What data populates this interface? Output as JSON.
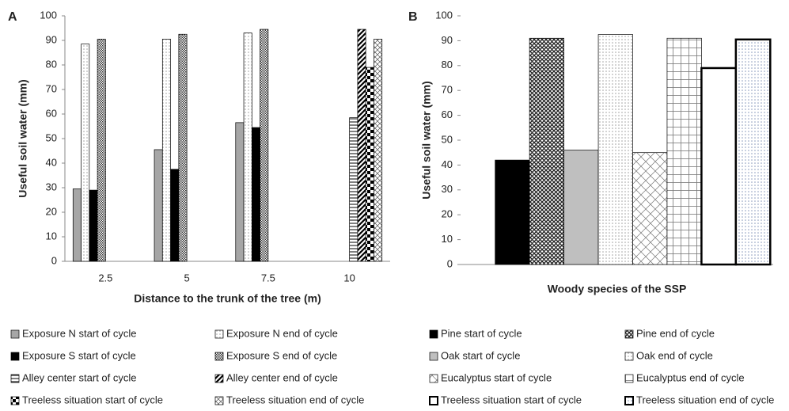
{
  "chart_data": [
    {
      "type": "bar",
      "label": "A",
      "xlabel": "Distance to the trunk of the tree (m)",
      "ylabel": "Useful  soil  water (mm)",
      "categories": [
        "2.5",
        "5",
        "7.5",
        "10"
      ],
      "ylim": [
        0,
        100
      ],
      "yticks": [
        0,
        10,
        20,
        30,
        40,
        50,
        60,
        70,
        80,
        90,
        100
      ],
      "series": [
        {
          "name": "Exposure N start of cycle",
          "color": "#a6a6a6",
          "pattern": "solid",
          "values": [
            29.5,
            45.5,
            56.5,
            null
          ]
        },
        {
          "name": "Exposure N end of cycle",
          "color": "#a0a0a0",
          "pattern": "dots",
          "values": [
            88.5,
            90.5,
            93,
            null
          ]
        },
        {
          "name": "Exposure S start of cycle",
          "color": "#000000",
          "pattern": "solid",
          "values": [
            29,
            37.5,
            54.5,
            null
          ]
        },
        {
          "name": "Exposure S end of cycle",
          "color": "#333333",
          "pattern": "checker",
          "values": [
            90.5,
            92.5,
            94.5,
            null
          ]
        },
        {
          "name": "Alley center start of cycle",
          "color": "#000000",
          "pattern": "hlines",
          "values": [
            null,
            null,
            null,
            58.5
          ]
        },
        {
          "name": "Alley center end of cycle",
          "color": "#000000",
          "pattern": "diag",
          "values": [
            null,
            null,
            null,
            94.5
          ]
        },
        {
          "name": "Treeless situation start of cycle",
          "color": "#000000",
          "pattern": "bigchecker",
          "values": [
            null,
            null,
            null,
            79
          ]
        },
        {
          "name": "Treeless situation end of cycle",
          "color": "#555555",
          "pattern": "diagcross",
          "values": [
            null,
            null,
            null,
            90.5
          ]
        }
      ]
    },
    {
      "type": "bar",
      "label": "B",
      "xlabel": "Woody species of the SSP",
      "ylabel": "Useful  soil  water (mm)",
      "categories": [
        null
      ],
      "ylim": [
        0,
        100
      ],
      "yticks": [
        0,
        10,
        20,
        30,
        40,
        50,
        60,
        70,
        80,
        90,
        100
      ],
      "series": [
        {
          "name": "Pine start of cycle",
          "color": "#000000",
          "pattern": "solid",
          "values": [
            42
          ]
        },
        {
          "name": "Pine end of cycle",
          "color": "#222222",
          "pattern": "crosshatch",
          "values": [
            91
          ]
        },
        {
          "name": "Oak start of cycle",
          "color": "#bfbfbf",
          "pattern": "solid",
          "values": [
            46
          ]
        },
        {
          "name": "Oak end of cycle",
          "color": "#a0a0a0",
          "pattern": "dots",
          "values": [
            92.5
          ]
        },
        {
          "name": "Eucalyptus start of cycle",
          "color": "#777777",
          "pattern": "diamond",
          "values": [
            45
          ]
        },
        {
          "name": "Eucalyptus end of cycle",
          "color": "#777777",
          "pattern": "grid",
          "values": [
            91
          ]
        },
        {
          "name": "Treeless situation start of cycle",
          "color": "#ffffff",
          "pattern": "solid",
          "border": "thick",
          "values": [
            79
          ]
        },
        {
          "name": "Treeless situation end of cycle",
          "color": "#8899bb",
          "pattern": "dots",
          "border": "thick",
          "values": [
            90.5
          ]
        }
      ]
    }
  ]
}
